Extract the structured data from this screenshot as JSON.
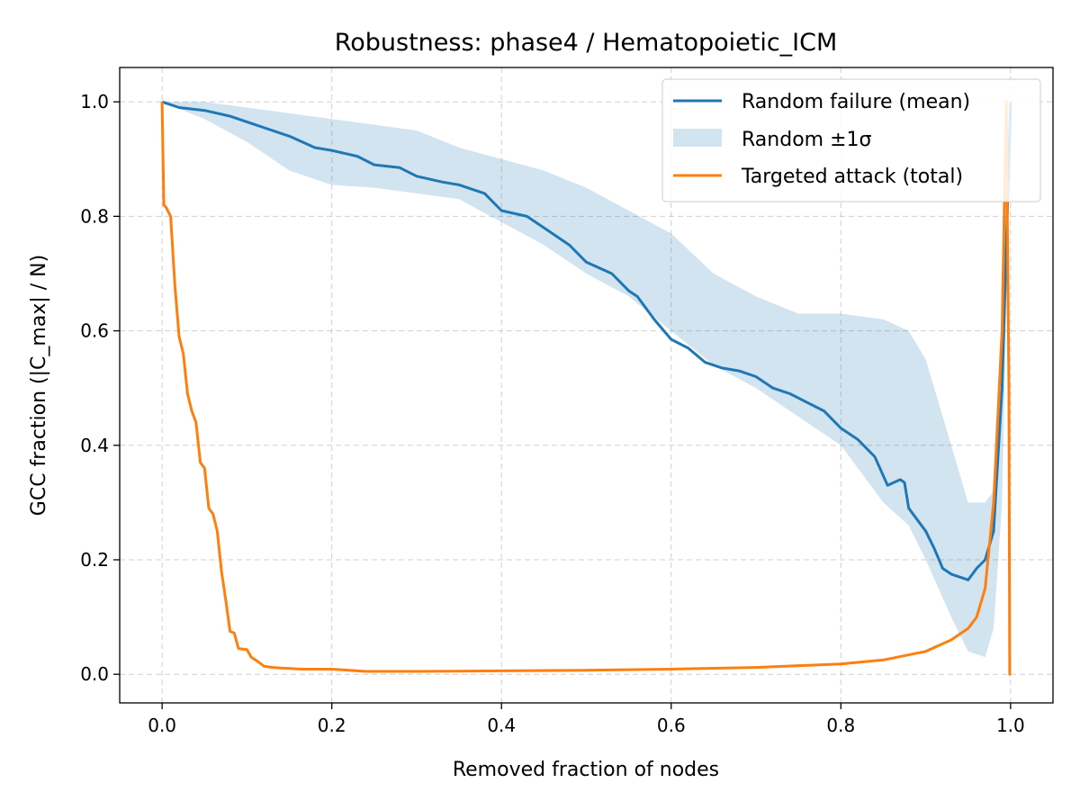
{
  "chart_data": {
    "type": "line",
    "title": "Robustness: phase4 / Hematopoietic_ICM",
    "xlabel": "Removed fraction of nodes",
    "ylabel": "GCC fraction (|C_max| / N)",
    "xlim": [
      -0.05,
      1.05
    ],
    "ylim": [
      -0.05,
      1.06
    ],
    "xticks": [
      0.0,
      0.2,
      0.4,
      0.6,
      0.8,
      1.0
    ],
    "xtick_labels": [
      "0.0",
      "0.2",
      "0.4",
      "0.6",
      "0.8",
      "1.0"
    ],
    "yticks": [
      0.0,
      0.2,
      0.4,
      0.6,
      0.8,
      1.0
    ],
    "ytick_labels": [
      "0.0",
      "0.2",
      "0.4",
      "0.6",
      "0.8",
      "1.0"
    ],
    "grid": true,
    "legend_position": "top-right",
    "legend": [
      "Random failure (mean)",
      "Random ±1σ",
      "Targeted attack (total)"
    ],
    "series": [
      {
        "name": "Random failure (mean)",
        "kind": "line",
        "color": "#1f77b4",
        "x": [
          0.0,
          0.02,
          0.05,
          0.08,
          0.1,
          0.13,
          0.15,
          0.18,
          0.2,
          0.23,
          0.25,
          0.28,
          0.3,
          0.33,
          0.35,
          0.38,
          0.4,
          0.43,
          0.45,
          0.48,
          0.5,
          0.53,
          0.55,
          0.56,
          0.58,
          0.6,
          0.62,
          0.64,
          0.66,
          0.68,
          0.7,
          0.72,
          0.74,
          0.76,
          0.78,
          0.8,
          0.82,
          0.84,
          0.855,
          0.87,
          0.875,
          0.88,
          0.9,
          0.91,
          0.92,
          0.93,
          0.95,
          0.96,
          0.97,
          0.98,
          0.99,
          1.0
        ],
        "y": [
          1.0,
          0.99,
          0.985,
          0.975,
          0.965,
          0.95,
          0.94,
          0.92,
          0.915,
          0.905,
          0.89,
          0.885,
          0.87,
          0.86,
          0.855,
          0.84,
          0.81,
          0.8,
          0.78,
          0.75,
          0.72,
          0.7,
          0.67,
          0.66,
          0.62,
          0.585,
          0.57,
          0.545,
          0.535,
          0.53,
          0.52,
          0.5,
          0.49,
          0.475,
          0.46,
          0.43,
          0.41,
          0.38,
          0.33,
          0.34,
          0.335,
          0.29,
          0.25,
          0.22,
          0.185,
          0.175,
          0.165,
          0.185,
          0.2,
          0.25,
          0.5,
          1.0
        ]
      },
      {
        "name": "Random ±1σ",
        "kind": "band",
        "color": "#1f77b4",
        "opacity": 0.2,
        "x": [
          0.0,
          0.05,
          0.1,
          0.15,
          0.2,
          0.25,
          0.3,
          0.35,
          0.4,
          0.45,
          0.5,
          0.55,
          0.6,
          0.65,
          0.7,
          0.75,
          0.8,
          0.85,
          0.88,
          0.9,
          0.93,
          0.95,
          0.97,
          0.98,
          0.99,
          1.0
        ],
        "lower": [
          1.0,
          0.97,
          0.93,
          0.88,
          0.855,
          0.85,
          0.84,
          0.83,
          0.79,
          0.75,
          0.7,
          0.66,
          0.6,
          0.54,
          0.5,
          0.45,
          0.4,
          0.3,
          0.26,
          0.2,
          0.1,
          0.04,
          0.03,
          0.08,
          0.3,
          1.0
        ],
        "upper": [
          1.0,
          1.0,
          0.99,
          0.98,
          0.97,
          0.96,
          0.95,
          0.92,
          0.9,
          0.88,
          0.85,
          0.81,
          0.77,
          0.7,
          0.66,
          0.63,
          0.63,
          0.62,
          0.6,
          0.55,
          0.4,
          0.3,
          0.3,
          0.32,
          0.5,
          1.0
        ]
      },
      {
        "name": "Targeted attack (total)",
        "kind": "line",
        "color": "#ff7f0e",
        "x": [
          0.0,
          0.002,
          0.005,
          0.01,
          0.015,
          0.02,
          0.025,
          0.03,
          0.035,
          0.04,
          0.045,
          0.05,
          0.055,
          0.06,
          0.065,
          0.07,
          0.075,
          0.08,
          0.085,
          0.09,
          0.095,
          0.1,
          0.105,
          0.11,
          0.115,
          0.12,
          0.125,
          0.13,
          0.14,
          0.15,
          0.165,
          0.2,
          0.24,
          0.3,
          0.4,
          0.5,
          0.6,
          0.7,
          0.8,
          0.85,
          0.9,
          0.93,
          0.95,
          0.96,
          0.97,
          0.98,
          0.99,
          0.995,
          0.998,
          0.999,
          1.0
        ],
        "y": [
          1.0,
          0.82,
          0.815,
          0.8,
          0.68,
          0.59,
          0.56,
          0.49,
          0.46,
          0.44,
          0.37,
          0.36,
          0.29,
          0.28,
          0.25,
          0.18,
          0.13,
          0.075,
          0.072,
          0.045,
          0.044,
          0.043,
          0.03,
          0.025,
          0.02,
          0.014,
          0.013,
          0.012,
          0.011,
          0.01,
          0.009,
          0.009,
          0.005,
          0.005,
          0.006,
          0.007,
          0.009,
          0.012,
          0.018,
          0.025,
          0.04,
          0.06,
          0.08,
          0.1,
          0.15,
          0.3,
          0.6,
          1.0,
          0.5,
          0.0,
          0.0
        ]
      }
    ]
  }
}
